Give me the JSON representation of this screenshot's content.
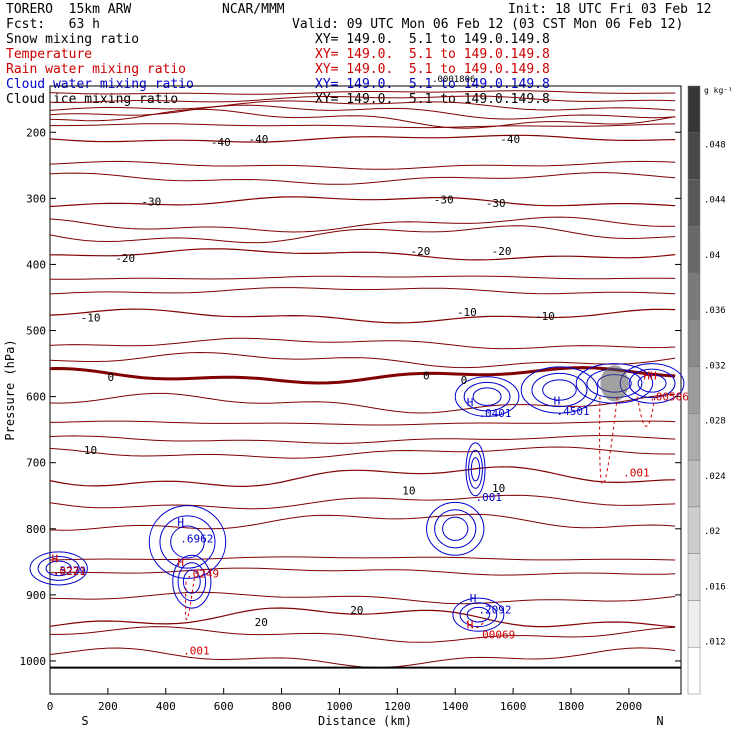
{
  "header": {
    "model": "TORERO  15km ARW",
    "center": "NCAR/MMM",
    "init": "Init: 18 UTC Fri 03 Feb 12",
    "fcst": "Fcst:   63 h",
    "valid": "Valid: 09 UTC Mon 06 Feb 12 (03 CST Mon 06 Feb 12)",
    "fields": [
      {
        "name": "Snow mixing ratio",
        "xy": "XY= 149.0.  5.1 to 149.0.149.8",
        "color": "#000000"
      },
      {
        "name": "Temperature",
        "xy": "XY= 149.0.  5.1 to 149.0.149.8",
        "color": "#cc0000"
      },
      {
        "name": "Rain water mixing ratio",
        "xy": "XY= 149.0.  5.1 to 149.0.149.8",
        "color": "#cc0000"
      },
      {
        "name": "Cloud water mixing ratio",
        "xy": "XY= 149.0.  5.1 to 149.0.149.8",
        "color": "#0000cc"
      },
      {
        "name": "Cloud ice mixing ratio",
        "xy": "XY= 149.0.  5.1 to 149.0.149.8",
        "color": "#000000"
      }
    ]
  },
  "chart_data": {
    "type": "contour",
    "xlabel": "Distance (km)",
    "ylabel": "Pressure (hPa)",
    "xlim": [
      0,
      2180
    ],
    "ylim": [
      1050,
      130
    ],
    "xticks": [
      0,
      200,
      400,
      600,
      800,
      1000,
      1200,
      1400,
      1600,
      1800,
      2000
    ],
    "yticks": [
      200,
      300,
      400,
      500,
      600,
      700,
      800,
      900,
      1000
    ],
    "x_end_labels": {
      "left": "S",
      "right": "N"
    },
    "colorbar": {
      "unit": "g kg⁻¹",
      "ticks": [
        ".012",
        ".016",
        ".02",
        ".024",
        ".028",
        ".032",
        ".036",
        ".04",
        ".044",
        ".048"
      ]
    },
    "temperature_labels": [
      {
        "x": 590,
        "p": 215,
        "text": "-40"
      },
      {
        "x": 720,
        "p": 210,
        "text": "-40"
      },
      {
        "x": 1590,
        "p": 210,
        "text": "-40"
      },
      {
        "x": 350,
        "p": 305,
        "text": "-30"
      },
      {
        "x": 1360,
        "p": 302,
        "text": "-30"
      },
      {
        "x": 1540,
        "p": 307,
        "text": "-30"
      },
      {
        "x": 260,
        "p": 390,
        "text": "-20"
      },
      {
        "x": 1280,
        "p": 380,
        "text": "-20"
      },
      {
        "x": 1560,
        "p": 380,
        "text": "-20"
      },
      {
        "x": 140,
        "p": 480,
        "text": "-10"
      },
      {
        "x": 1440,
        "p": 472,
        "text": "-10"
      },
      {
        "x": 1710,
        "p": 478,
        "text": "-10"
      },
      {
        "x": 210,
        "p": 570,
        "text": "0"
      },
      {
        "x": 1300,
        "p": 568,
        "text": "0"
      },
      {
        "x": 1430,
        "p": 575,
        "text": "0"
      },
      {
        "x": 140,
        "p": 681,
        "text": "10"
      },
      {
        "x": 1240,
        "p": 742,
        "text": "10"
      },
      {
        "x": 1550,
        "p": 738,
        "text": "10"
      },
      {
        "x": 730,
        "p": 941,
        "text": "20"
      },
      {
        "x": 1060,
        "p": 923,
        "text": "20"
      }
    ],
    "temperature_isotherms": [
      {
        "value": "-40",
        "p": 210,
        "amp": 4
      },
      {
        "value": "-30",
        "p": 305,
        "amp": 6
      },
      {
        "value": "-20",
        "p": 385,
        "amp": 6
      },
      {
        "value": "-10",
        "p": 478,
        "amp": 7
      },
      {
        "value": "0",
        "p": 568,
        "amp": 8
      },
      {
        "value": "10",
        "p": 722,
        "amp": 12
      },
      {
        "value": "20",
        "p": 935,
        "amp": 12
      }
    ],
    "cloud_water_labels": [
      {
        "x": 450,
        "p": 815,
        "text": ".6962"
      },
      {
        "x": 1480,
        "p": 625,
        "text": ".0401"
      },
      {
        "x": 1750,
        "p": 622,
        "text": ".4501"
      },
      {
        "x": 1470,
        "p": 752,
        "text": ".001"
      },
      {
        "x": 1480,
        "p": 922,
        "text": ".2092"
      },
      {
        "x": 10,
        "p": 863,
        "text": ".5279"
      }
    ],
    "rain_water_labels": [
      {
        "x": 470,
        "p": 868,
        "text": ".0249"
      },
      {
        "x": 460,
        "p": 984,
        "text": ".001"
      },
      {
        "x": 1470,
        "p": 960,
        "text": ".00069"
      },
      {
        "x": 2070,
        "p": 600,
        "text": ".00506"
      },
      {
        "x": 1980,
        "p": 715,
        "text": ".001"
      },
      {
        "x": 10,
        "p": 864,
        "text": ".0221"
      }
    ],
    "max_markers": [
      {
        "x": 440,
        "p": 790,
        "text": "H",
        "color": "#0000cc"
      },
      {
        "x": 440,
        "p": 850,
        "text": "H",
        "color": "#cc0000"
      },
      {
        "x": 1440,
        "p": 608,
        "text": "H",
        "color": "#0000cc"
      },
      {
        "x": 1740,
        "p": 606,
        "text": "H",
        "color": "#0000cc"
      },
      {
        "x": 1450,
        "p": 905,
        "text": "H",
        "color": "#0000cc"
      },
      {
        "x": 1440,
        "p": 945,
        "text": "H",
        "color": "#cc0000"
      },
      {
        "x": 2050,
        "p": 568,
        "text": "HH",
        "color": "#cc0000"
      },
      {
        "x": 5,
        "p": 845,
        "text": "H",
        "color": "#cc0000"
      }
    ],
    "top_label": {
      "x": 1320,
      "p": 118,
      "text": ".0001806"
    }
  }
}
